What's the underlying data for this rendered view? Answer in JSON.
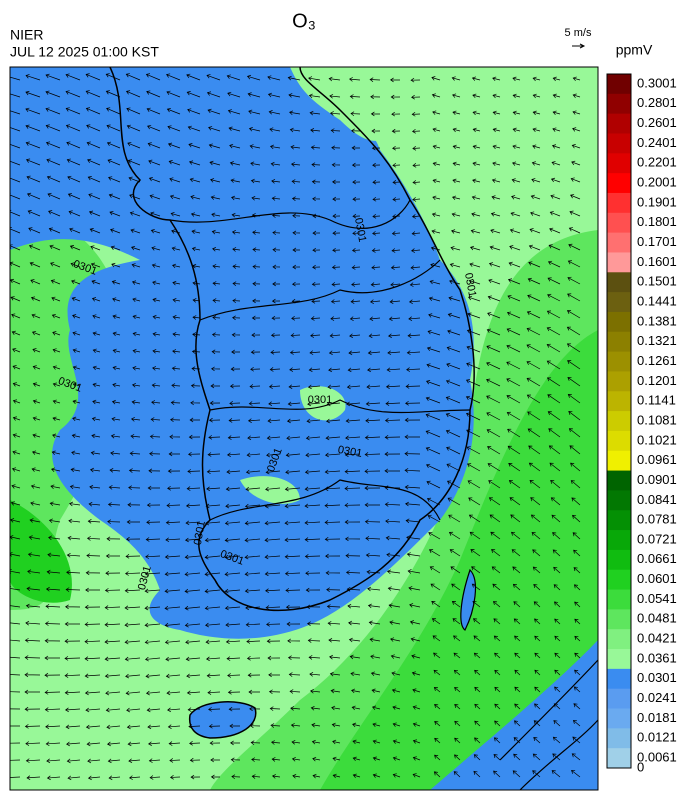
{
  "header": {
    "title": "O₃",
    "agency": "NIER",
    "timestamp": "JUL 12 2025 01:00 KST",
    "wind_scale": "5 m/s"
  },
  "colorbar": {
    "unit": "ppmV",
    "levels": [
      0.3001,
      0.2801,
      0.2601,
      0.2401,
      0.2201,
      0.2001,
      0.1901,
      0.1801,
      0.1701,
      0.1601,
      0.1501,
      0.1441,
      0.1381,
      0.1321,
      0.1261,
      0.1201,
      0.1141,
      0.1081,
      0.1021,
      0.0961,
      0.0901,
      0.0841,
      0.0781,
      0.0721,
      0.0661,
      0.0601,
      0.0541,
      0.0481,
      0.0421,
      0.0361,
      0.0301,
      0.0241,
      0.0181,
      0.0121,
      0.0061,
      0
    ],
    "colors": [
      "#700000",
      "#900000",
      "#b00000",
      "#c80000",
      "#e00000",
      "#ff0000",
      "#ff3030",
      "#ff5050",
      "#ff7070",
      "#ff9999",
      "#5c5010",
      "#6c6010",
      "#7c7000",
      "#8c8000",
      "#9c9000",
      "#aca000",
      "#bcb400",
      "#cccc00",
      "#dcdc00",
      "#f0f000",
      "#006400",
      "#027802",
      "#049004",
      "#08a808",
      "#10bc10",
      "#20d020",
      "#3cdc3c",
      "#5ee65e",
      "#80f080",
      "#98f898",
      "#3a8cf0",
      "#5a9cf0",
      "#6aaaf0",
      "#80bce8",
      "#a0d0e8"
    ]
  },
  "contour_labels": [
    "0301",
    "0301",
    "0301",
    "0301",
    "0301",
    "0301",
    "0301",
    "0301",
    "0301",
    "0301"
  ]
}
